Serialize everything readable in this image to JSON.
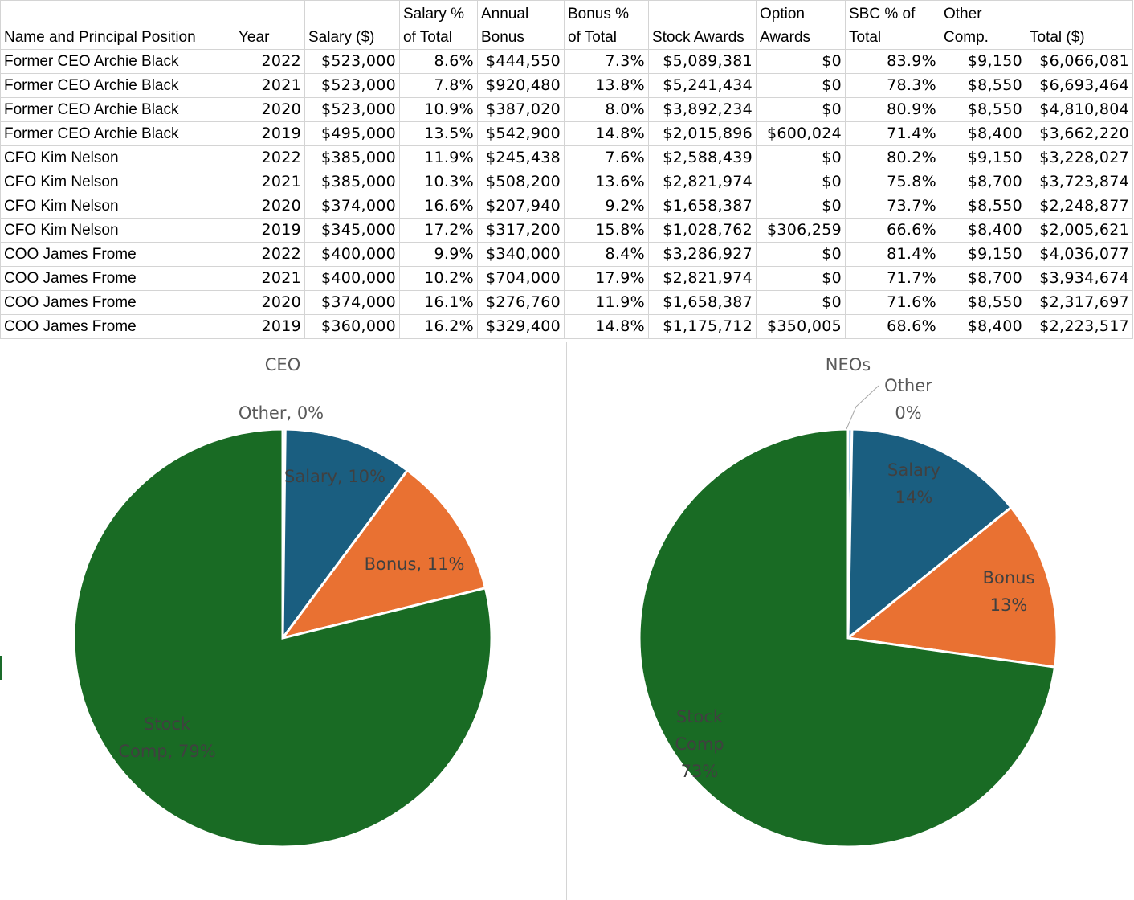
{
  "table": {
    "headers": [
      [
        "Name and Principal Position"
      ],
      [
        "Year"
      ],
      [
        "Salary ($)"
      ],
      [
        "Salary %",
        "of Total"
      ],
      [
        "Annual",
        "Bonus"
      ],
      [
        "Bonus %",
        "of Total"
      ],
      [
        "Stock Awards"
      ],
      [
        "Option",
        "Awards"
      ],
      [
        "SBC % of",
        "Total"
      ],
      [
        "Other",
        "Comp."
      ],
      [
        "Total ($)"
      ]
    ],
    "rows": [
      [
        "Former CEO Archie Black",
        "2022",
        "$523,000",
        "8.6%",
        "$444,550",
        "7.3%",
        "$5,089,381",
        "$0",
        "83.9%",
        "$9,150",
        "$6,066,081"
      ],
      [
        "Former CEO Archie Black",
        "2021",
        "$523,000",
        "7.8%",
        "$920,480",
        "13.8%",
        "$5,241,434",
        "$0",
        "78.3%",
        "$8,550",
        "$6,693,464"
      ],
      [
        "Former CEO Archie Black",
        "2020",
        "$523,000",
        "10.9%",
        "$387,020",
        "8.0%",
        "$3,892,234",
        "$0",
        "80.9%",
        "$8,550",
        "$4,810,804"
      ],
      [
        "Former CEO Archie Black",
        "2019",
        "$495,000",
        "13.5%",
        "$542,900",
        "14.8%",
        "$2,015,896",
        "$600,024",
        "71.4%",
        "$8,400",
        "$3,662,220"
      ],
      [
        "CFO Kim Nelson",
        "2022",
        "$385,000",
        "11.9%",
        "$245,438",
        "7.6%",
        "$2,588,439",
        "$0",
        "80.2%",
        "$9,150",
        "$3,228,027"
      ],
      [
        "CFO Kim Nelson",
        "2021",
        "$385,000",
        "10.3%",
        "$508,200",
        "13.6%",
        "$2,821,974",
        "$0",
        "75.8%",
        "$8,700",
        "$3,723,874"
      ],
      [
        "CFO Kim Nelson",
        "2020",
        "$374,000",
        "16.6%",
        "$207,940",
        "9.2%",
        "$1,658,387",
        "$0",
        "73.7%",
        "$8,550",
        "$2,248,877"
      ],
      [
        "CFO Kim Nelson",
        "2019",
        "$345,000",
        "17.2%",
        "$317,200",
        "15.8%",
        "$1,028,762",
        "$306,259",
        "66.6%",
        "$8,400",
        "$2,005,621"
      ],
      [
        "COO James Frome",
        "2022",
        "$400,000",
        "9.9%",
        "$340,000",
        "8.4%",
        "$3,286,927",
        "$0",
        "81.4%",
        "$9,150",
        "$4,036,077"
      ],
      [
        "COO James Frome",
        "2021",
        "$400,000",
        "10.2%",
        "$704,000",
        "17.9%",
        "$2,821,974",
        "$0",
        "71.7%",
        "$8,700",
        "$3,934,674"
      ],
      [
        "COO James Frome",
        "2020",
        "$374,000",
        "16.1%",
        "$276,760",
        "11.9%",
        "$1,658,387",
        "$0",
        "71.6%",
        "$8,550",
        "$2,317,697"
      ],
      [
        "COO James Frome",
        "2019",
        "$360,000",
        "16.2%",
        "$329,400",
        "14.8%",
        "$1,175,712",
        "$350,005",
        "68.6%",
        "$8,400",
        "$2,223,517"
      ]
    ]
  },
  "chart_data": [
    {
      "type": "pie",
      "title": "CEO",
      "slices": [
        {
          "label": "Other",
          "value": 0.2,
          "display": "Other, 0%",
          "color": "#5b9bd5"
        },
        {
          "label": "Salary",
          "value": 10,
          "display": "Salary, 10%",
          "color": "#1a5e80"
        },
        {
          "label": "Bonus",
          "value": 11,
          "display": "Bonus, 11%",
          "color": "#e97132"
        },
        {
          "label": "Stock Comp",
          "value": 79,
          "display": "Stock Comp, 79%",
          "color": "#196b24"
        }
      ]
    },
    {
      "type": "pie",
      "title": "NEOs",
      "slices": [
        {
          "label": "Other",
          "value": 0.3,
          "display": "Other 0%",
          "color": "#5b9bd5"
        },
        {
          "label": "Salary",
          "value": 14,
          "display": "Salary 14%",
          "color": "#1a5e80"
        },
        {
          "label": "Bonus",
          "value": 13,
          "display": "Bonus 13%",
          "color": "#e97132"
        },
        {
          "label": "Stock Comp",
          "value": 73,
          "display": "Stock Comp 73%",
          "color": "#196b24"
        }
      ]
    }
  ]
}
